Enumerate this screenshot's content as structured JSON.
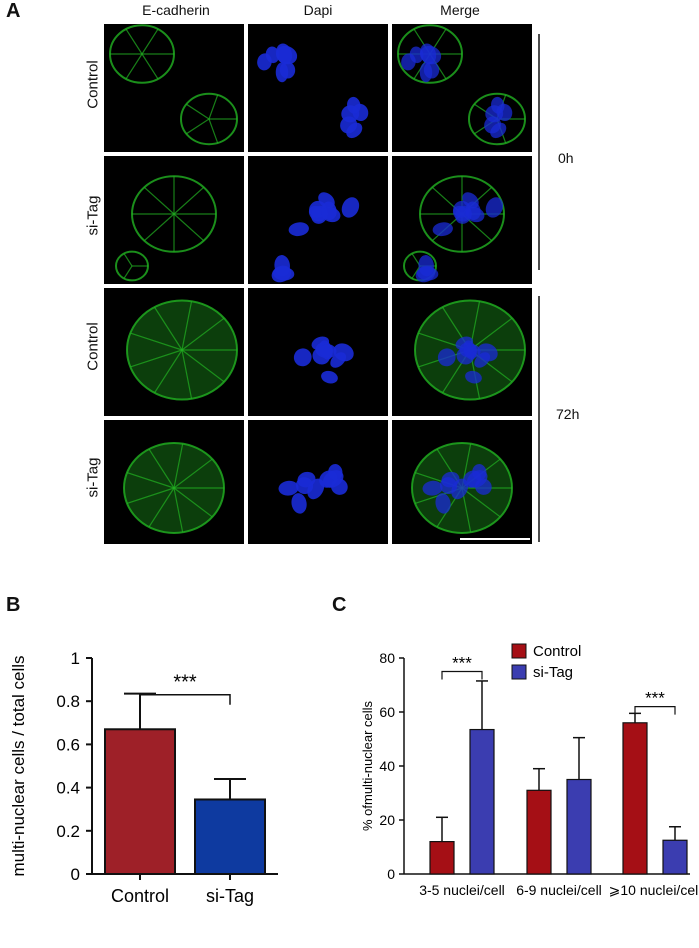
{
  "panel_a": {
    "letter": "A",
    "columns": [
      "E-cadherin",
      "Dapi",
      "Merge"
    ],
    "rows": [
      "Control",
      "si-Tag",
      "Control",
      "si-Tag"
    ],
    "times": [
      "0h",
      "72h"
    ],
    "colors": {
      "ecad": "#22b322",
      "dapi": "#1a2bd6"
    }
  },
  "panel_b": {
    "letter": "B"
  },
  "panel_c": {
    "letter": "C"
  },
  "chart_data": [
    {
      "type": "bar",
      "categories": [
        "Control",
        "si-Tag"
      ],
      "values": [
        0.67,
        0.345
      ],
      "errors": [
        0.165,
        0.095
      ],
      "colors": [
        "#9e2028",
        "#0e3aa0"
      ],
      "title": "",
      "xlabel": "",
      "ylabel": "multi-nuclear cells / total cells",
      "ylim": [
        0,
        1
      ],
      "yticks": [
        "0",
        "0.2",
        "0.4",
        "0.6",
        "0.8",
        "1"
      ],
      "significance": [
        {
          "between": [
            "Control",
            "si-Tag"
          ],
          "label": "***"
        }
      ]
    },
    {
      "type": "bar",
      "categories": [
        "3-5 nuclei/cell",
        "6-9 nuclei/cell",
        "⩾10 nuclei/cell"
      ],
      "series": [
        {
          "name": "Control",
          "color": "#a50f15",
          "values": [
            12,
            31,
            56
          ],
          "errors": [
            9,
            8,
            3.5
          ]
        },
        {
          "name": "si-Tag",
          "color": "#3b3db0",
          "values": [
            53.5,
            35,
            12.5
          ],
          "errors": [
            18,
            15.5,
            5
          ]
        }
      ],
      "title": "",
      "xlabel": "",
      "ylabel": "% ofmulti-nuclear cells",
      "ylim": [
        0,
        80
      ],
      "yticks": [
        "0",
        "20",
        "40",
        "60",
        "80"
      ],
      "legend": "top-right",
      "significance": [
        {
          "category": "3-5 nuclei/cell",
          "label": "***"
        },
        {
          "category": "⩾10 nuclei/cell",
          "label": "***"
        }
      ]
    }
  ]
}
